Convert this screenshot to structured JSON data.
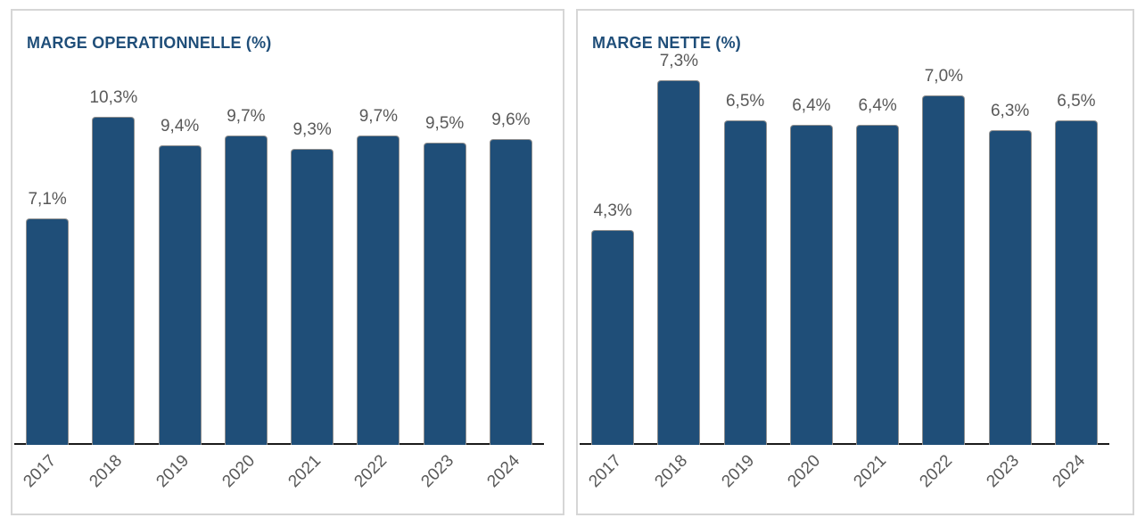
{
  "chart_data": [
    {
      "type": "bar",
      "title": "MARGE OPERATIONNELLE (%)",
      "categories": [
        "2017",
        "2018",
        "2019",
        "2020",
        "2021",
        "2022",
        "2023",
        "2024"
      ],
      "values": [
        7.1,
        10.3,
        9.4,
        9.7,
        9.3,
        9.7,
        9.5,
        9.6
      ],
      "labels": [
        "7,1%",
        "10,3%",
        "9,4%",
        "9,7%",
        "9,3%",
        "9,7%",
        "9,5%",
        "9,6%"
      ],
      "xlabel": "",
      "ylabel": "",
      "ylim": [
        0,
        11
      ],
      "grid": false,
      "legend": "none",
      "bar_color": "#1F4E78",
      "bar_outline_color": "#8f8f8f",
      "title_color": "#1F4E79",
      "label_color": "#595959",
      "axis_color": "#1a1a1a"
    },
    {
      "type": "bar",
      "title": "MARGE NETTE (%)",
      "categories": [
        "2017",
        "2018",
        "2019",
        "2020",
        "2021",
        "2022",
        "2023",
        "2024"
      ],
      "values": [
        4.3,
        7.3,
        6.5,
        6.4,
        6.4,
        7.0,
        6.3,
        6.5
      ],
      "labels": [
        "4,3%",
        "7,3%",
        "6,5%",
        "6,4%",
        "6,4%",
        "7,0%",
        "6,3%",
        "6,5%"
      ],
      "xlabel": "",
      "ylabel": "",
      "ylim": [
        0,
        8
      ],
      "grid": false,
      "legend": "none",
      "bar_color": "#1F4E78",
      "bar_outline_color": "#8f8f8f",
      "title_color": "#1F4E79",
      "label_color": "#595959",
      "axis_color": "#1a1a1a"
    }
  ]
}
